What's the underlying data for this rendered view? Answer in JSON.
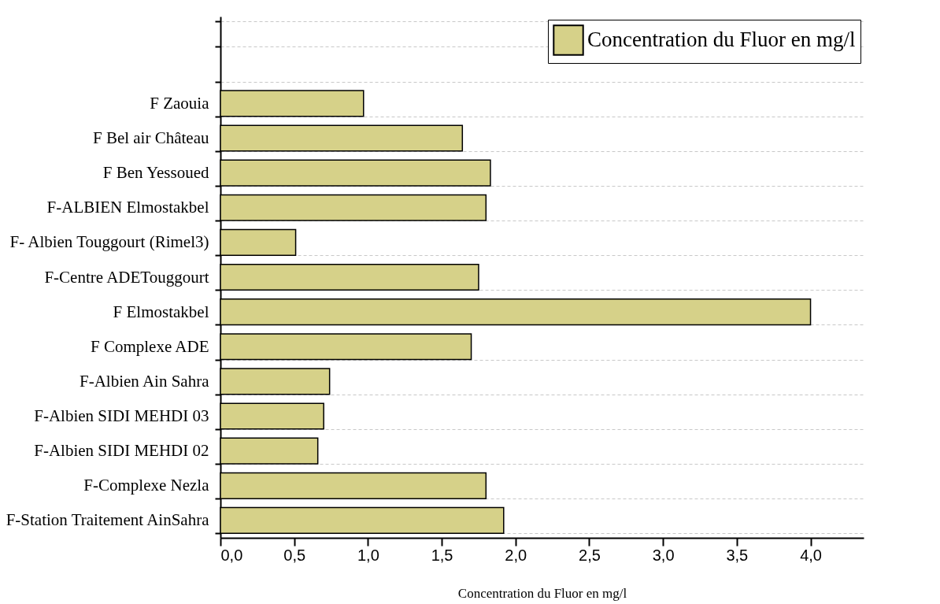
{
  "chart_data": {
    "type": "bar",
    "orientation": "horizontal",
    "xlabel": "Concentration du Fluor en mg/l",
    "categories": [
      null,
      null,
      "F Zaouia",
      "F Bel air Château",
      "F Ben Yessoued",
      "F-ALBIEN Elmostakbel",
      "F- Albien Touggourt (Rimel3)",
      "F-Centre ADETouggourt",
      "F Elmostakbel",
      "F Complexe ADE",
      "F-Albien   Ain Sahra",
      "F-Albien SIDI MEHDI 03",
      "F-Albien SIDI MEHDI 02",
      "F-Complexe Nezla",
      "F-Station Traitement AinSahra"
    ],
    "series": [
      {
        "name": "Concentration du Fluor en mg/l",
        "color": "#d6d189",
        "values": [
          null,
          null,
          0.97,
          1.64,
          1.83,
          1.8,
          0.51,
          1.75,
          4.0,
          1.7,
          0.74,
          0.7,
          0.66,
          1.8,
          1.92
        ]
      }
    ],
    "xlim": [
      0,
      4.36
    ],
    "xticks": [
      {
        "value": 0,
        "label": "0,0"
      },
      {
        "value": 0.5,
        "label": "0,5"
      },
      {
        "value": 1,
        "label": "1,0"
      },
      {
        "value": 1.5,
        "label": "1,5"
      },
      {
        "value": 2,
        "label": "2,0"
      },
      {
        "value": 2.5,
        "label": "2,5"
      },
      {
        "value": 3,
        "label": "3,0"
      },
      {
        "value": 3.5,
        "label": "3,5"
      },
      {
        "value": 4,
        "label": "4,0"
      }
    ],
    "grid": "y",
    "legend": "top right"
  }
}
